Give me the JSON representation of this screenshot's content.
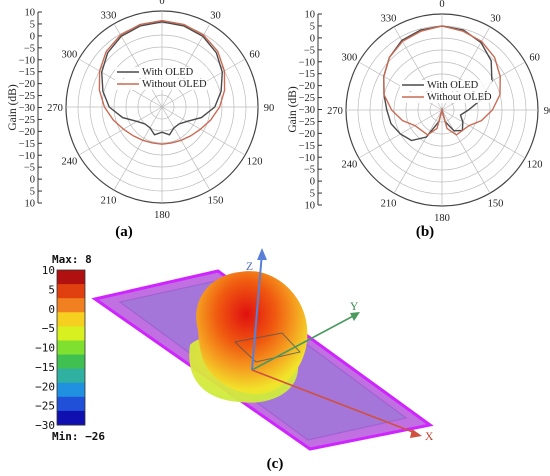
{
  "chart_data": [
    {
      "type": "line",
      "subtype": "polar",
      "panel": "(a)",
      "ylabel": "Gain (dB)",
      "rlim": [
        -30,
        10
      ],
      "radial_ticks": [
        10,
        5,
        0,
        -5,
        -10,
        -15,
        -20,
        -25,
        -30,
        -25,
        -20,
        -15,
        -10,
        -5,
        0,
        5,
        10
      ],
      "angle_ticks": [
        0,
        30,
        60,
        90,
        120,
        150,
        180,
        210,
        240,
        270,
        300,
        330
      ],
      "theta_deg": [
        0,
        15,
        30,
        45,
        60,
        75,
        90,
        105,
        120,
        135,
        150,
        165,
        180,
        195,
        210,
        225,
        240,
        255,
        270,
        285,
        300,
        315,
        330,
        345
      ],
      "legend_position": "inside-upper-left",
      "series": [
        {
          "name": "With OLED",
          "color": "#4a4a4a",
          "values": [
            5.5,
            5.0,
            4.0,
            2.0,
            -1.0,
            -4.5,
            -8.0,
            -13.0,
            -18.0,
            -20.0,
            -20.0,
            -18.0,
            -19.5,
            -18.0,
            -20.0,
            -20.0,
            -18.0,
            -13.0,
            -8.0,
            -4.5,
            -1.0,
            2.0,
            4.0,
            5.0
          ]
        },
        {
          "name": "Without OLED",
          "color": "#c96b54",
          "values": [
            6.0,
            5.6,
            4.6,
            2.8,
            0.0,
            -3.0,
            -6.0,
            -9.0,
            -11.5,
            -13.0,
            -14.0,
            -14.5,
            -14.5,
            -14.5,
            -14.0,
            -13.0,
            -11.5,
            -9.0,
            -6.0,
            -3.0,
            0.0,
            2.8,
            4.6,
            5.6
          ]
        }
      ]
    },
    {
      "type": "line",
      "subtype": "polar",
      "panel": "(b)",
      "ylabel": "Gain (dB)",
      "rlim": [
        -30,
        10
      ],
      "radial_ticks": [
        10,
        5,
        0,
        -5,
        -10,
        -15,
        -20,
        -25,
        -30,
        -25,
        -20,
        -15,
        -10,
        -5,
        0,
        5,
        10
      ],
      "angle_ticks": [
        0,
        30,
        60,
        90,
        120,
        150,
        180,
        210,
        240,
        270,
        300,
        330
      ],
      "theta_deg": [
        0,
        15,
        30,
        45,
        60,
        75,
        90,
        105,
        120,
        135,
        150,
        165,
        180,
        195,
        210,
        225,
        240,
        255,
        270,
        285,
        300,
        315,
        330,
        345
      ],
      "legend_position": "inside-center",
      "series": [
        {
          "name": "With OLED",
          "color": "#4a4a4a",
          "values": [
            5.0,
            4.5,
            2.5,
            -1.0,
            -6.0,
            -13.0,
            -19.0,
            -22.0,
            -20.0,
            -18.0,
            -20.0,
            -25.0,
            -30.0,
            -25.0,
            -17.0,
            -12.0,
            -10.0,
            -8.0,
            -7.0,
            -5.0,
            -2.0,
            1.0,
            3.5,
            4.5
          ]
        },
        {
          "name": "Without OLED",
          "color": "#c96b54",
          "values": [
            5.0,
            4.0,
            3.0,
            1.0,
            -2.0,
            -5.0,
            -9.0,
            -13.0,
            -17.0,
            -18.0,
            -18.0,
            -22.0,
            -30.0,
            -22.0,
            -18.0,
            -18.0,
            -17.0,
            -13.0,
            -9.0,
            -5.0,
            -2.0,
            1.0,
            3.0,
            4.0
          ]
        }
      ]
    },
    {
      "type": "heatmap",
      "subtype": "3d-radiation-pattern",
      "panel": "(c)",
      "colorbar": {
        "max_label": "Max: 8",
        "min_label": "Min: −26",
        "ticks": [
          "10",
          "5",
          "0",
          "−5",
          "−10",
          "−15",
          "−20",
          "−25",
          "−30"
        ],
        "colors": [
          "#b01010",
          "#e04010",
          "#f08020",
          "#f5d020",
          "#d8f020",
          "#80e030",
          "#40c050",
          "#30b0a0",
          "#2090e0",
          "#2050d8",
          "#1010b0"
        ]
      },
      "axes_labels": {
        "z": "Z",
        "y": "Y",
        "x": "X"
      }
    }
  ]
}
